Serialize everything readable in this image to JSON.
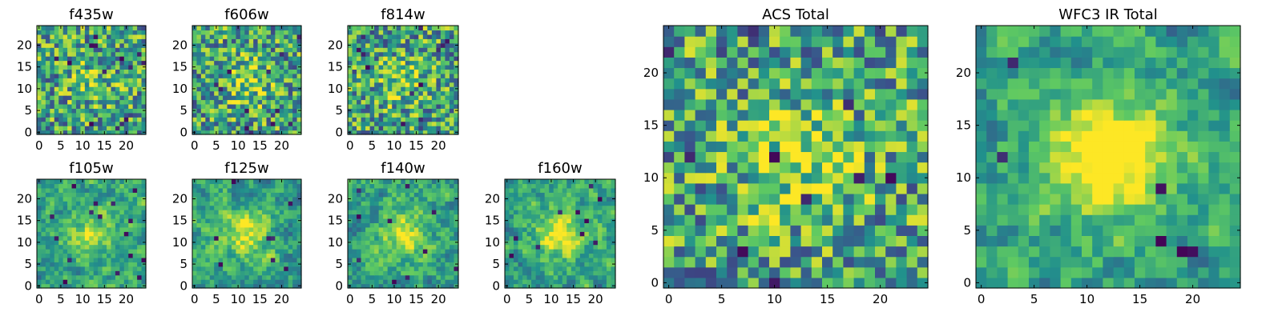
{
  "figure": {
    "description": "Grid of image cutouts for HST filters plus total stacks",
    "colormap": [
      "#440154",
      "#3b528b",
      "#21918c",
      "#5ec962",
      "#fde725"
    ]
  },
  "chart_data": [
    {
      "type": "heatmap",
      "title": "f435w",
      "size": 25,
      "xticks": [
        0,
        5,
        10,
        15,
        20
      ],
      "yticks": [
        0,
        5,
        10,
        15,
        20
      ],
      "xlim": [
        -0.5,
        24.5
      ],
      "ylim": [
        -0.5,
        24.5
      ],
      "seed": 11,
      "smooth": 0,
      "hotspot": 0.15,
      "outliers": 14
    },
    {
      "type": "heatmap",
      "title": "f606w",
      "size": 25,
      "xticks": [
        0,
        5,
        10,
        15,
        20
      ],
      "yticks": [
        0,
        5,
        10,
        15,
        20
      ],
      "xlim": [
        -0.5,
        24.5
      ],
      "ylim": [
        -0.5,
        24.5
      ],
      "seed": 23,
      "smooth": 0,
      "hotspot": 0.25,
      "outliers": 12
    },
    {
      "type": "heatmap",
      "title": "f814w",
      "size": 25,
      "xticks": [
        0,
        5,
        10,
        15,
        20
      ],
      "yticks": [
        0,
        5,
        10,
        15,
        20
      ],
      "xlim": [
        -0.5,
        24.5
      ],
      "ylim": [
        -0.5,
        24.5
      ],
      "seed": 37,
      "smooth": 0,
      "hotspot": 0.2,
      "outliers": 12
    },
    {
      "type": "heatmap",
      "title": "f105w",
      "size": 25,
      "xticks": [
        0,
        5,
        10,
        15,
        20
      ],
      "yticks": [
        0,
        5,
        10,
        15,
        20
      ],
      "xlim": [
        -0.5,
        24.5
      ],
      "ylim": [
        -0.5,
        24.5
      ],
      "seed": 41,
      "smooth": 1,
      "hotspot": 0.3,
      "outliers": 16
    },
    {
      "type": "heatmap",
      "title": "f125w",
      "size": 25,
      "xticks": [
        0,
        5,
        10,
        15,
        20
      ],
      "yticks": [
        0,
        5,
        10,
        15,
        20
      ],
      "xlim": [
        -0.5,
        24.5
      ],
      "ylim": [
        -0.5,
        24.5
      ],
      "seed": 53,
      "smooth": 1,
      "hotspot": 0.35,
      "outliers": 8
    },
    {
      "type": "heatmap",
      "title": "f140w",
      "size": 25,
      "xticks": [
        0,
        5,
        10,
        15,
        20
      ],
      "yticks": [
        0,
        5,
        10,
        15,
        20
      ],
      "xlim": [
        -0.5,
        24.5
      ],
      "ylim": [
        -0.5,
        24.5
      ],
      "seed": 67,
      "smooth": 1,
      "hotspot": 0.35,
      "outliers": 10
    },
    {
      "type": "heatmap",
      "title": "f160w",
      "size": 25,
      "xticks": [
        0,
        5,
        10,
        15,
        20
      ],
      "yticks": [
        0,
        5,
        10,
        15,
        20
      ],
      "xlim": [
        -0.5,
        24.5
      ],
      "ylim": [
        -0.5,
        24.5
      ],
      "seed": 79,
      "smooth": 1,
      "hotspot": 0.45,
      "outliers": 10
    },
    {
      "type": "heatmap",
      "title": "ACS Total",
      "size": 25,
      "xticks": [
        0,
        5,
        10,
        15,
        20
      ],
      "yticks": [
        0,
        5,
        10,
        15,
        20
      ],
      "xlim": [
        -0.5,
        24.5
      ],
      "ylim": [
        -0.5,
        24.5
      ],
      "seed": 97,
      "smooth": 0,
      "hotspot": 0.3,
      "outliers": 10
    },
    {
      "type": "heatmap",
      "title": "WFC3 IR Total",
      "size": 25,
      "xticks": [
        0,
        5,
        10,
        15,
        20
      ],
      "yticks": [
        0,
        5,
        10,
        15,
        20
      ],
      "xlim": [
        -0.5,
        24.5
      ],
      "ylim": [
        -0.5,
        24.5
      ],
      "seed": 113,
      "smooth": 1,
      "hotspot": 0.6,
      "outliers": 6
    }
  ]
}
